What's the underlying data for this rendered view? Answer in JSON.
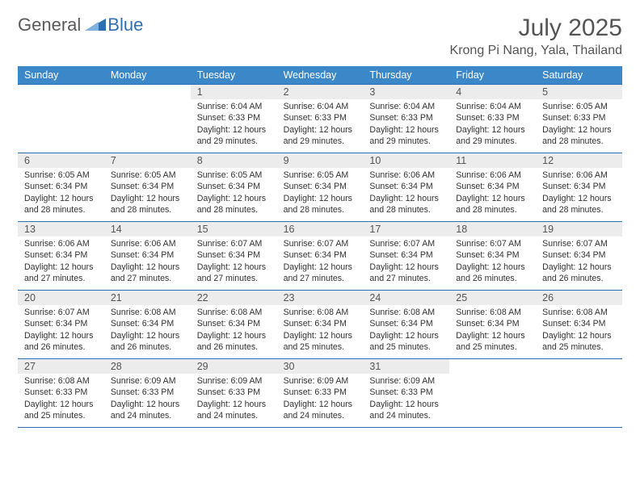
{
  "logo": {
    "text1": "General",
    "text2": "Blue"
  },
  "title": "July 2025",
  "subtitle": "Krong Pi Nang, Yala, Thailand",
  "header_bg": "#3b87c8",
  "rule_color": "#2d6fb5",
  "daynum_bg": "#ececec",
  "day_headers": [
    "Sunday",
    "Monday",
    "Tuesday",
    "Wednesday",
    "Thursday",
    "Friday",
    "Saturday"
  ],
  "weeks": [
    [
      {
        "n": "",
        "t": ""
      },
      {
        "n": "",
        "t": ""
      },
      {
        "n": "1",
        "t": "Sunrise: 6:04 AM\nSunset: 6:33 PM\nDaylight: 12 hours and 29 minutes."
      },
      {
        "n": "2",
        "t": "Sunrise: 6:04 AM\nSunset: 6:33 PM\nDaylight: 12 hours and 29 minutes."
      },
      {
        "n": "3",
        "t": "Sunrise: 6:04 AM\nSunset: 6:33 PM\nDaylight: 12 hours and 29 minutes."
      },
      {
        "n": "4",
        "t": "Sunrise: 6:04 AM\nSunset: 6:33 PM\nDaylight: 12 hours and 29 minutes."
      },
      {
        "n": "5",
        "t": "Sunrise: 6:05 AM\nSunset: 6:33 PM\nDaylight: 12 hours and 28 minutes."
      }
    ],
    [
      {
        "n": "6",
        "t": "Sunrise: 6:05 AM\nSunset: 6:34 PM\nDaylight: 12 hours and 28 minutes."
      },
      {
        "n": "7",
        "t": "Sunrise: 6:05 AM\nSunset: 6:34 PM\nDaylight: 12 hours and 28 minutes."
      },
      {
        "n": "8",
        "t": "Sunrise: 6:05 AM\nSunset: 6:34 PM\nDaylight: 12 hours and 28 minutes."
      },
      {
        "n": "9",
        "t": "Sunrise: 6:05 AM\nSunset: 6:34 PM\nDaylight: 12 hours and 28 minutes."
      },
      {
        "n": "10",
        "t": "Sunrise: 6:06 AM\nSunset: 6:34 PM\nDaylight: 12 hours and 28 minutes."
      },
      {
        "n": "11",
        "t": "Sunrise: 6:06 AM\nSunset: 6:34 PM\nDaylight: 12 hours and 28 minutes."
      },
      {
        "n": "12",
        "t": "Sunrise: 6:06 AM\nSunset: 6:34 PM\nDaylight: 12 hours and 28 minutes."
      }
    ],
    [
      {
        "n": "13",
        "t": "Sunrise: 6:06 AM\nSunset: 6:34 PM\nDaylight: 12 hours and 27 minutes."
      },
      {
        "n": "14",
        "t": "Sunrise: 6:06 AM\nSunset: 6:34 PM\nDaylight: 12 hours and 27 minutes."
      },
      {
        "n": "15",
        "t": "Sunrise: 6:07 AM\nSunset: 6:34 PM\nDaylight: 12 hours and 27 minutes."
      },
      {
        "n": "16",
        "t": "Sunrise: 6:07 AM\nSunset: 6:34 PM\nDaylight: 12 hours and 27 minutes."
      },
      {
        "n": "17",
        "t": "Sunrise: 6:07 AM\nSunset: 6:34 PM\nDaylight: 12 hours and 27 minutes."
      },
      {
        "n": "18",
        "t": "Sunrise: 6:07 AM\nSunset: 6:34 PM\nDaylight: 12 hours and 26 minutes."
      },
      {
        "n": "19",
        "t": "Sunrise: 6:07 AM\nSunset: 6:34 PM\nDaylight: 12 hours and 26 minutes."
      }
    ],
    [
      {
        "n": "20",
        "t": "Sunrise: 6:07 AM\nSunset: 6:34 PM\nDaylight: 12 hours and 26 minutes."
      },
      {
        "n": "21",
        "t": "Sunrise: 6:08 AM\nSunset: 6:34 PM\nDaylight: 12 hours and 26 minutes."
      },
      {
        "n": "22",
        "t": "Sunrise: 6:08 AM\nSunset: 6:34 PM\nDaylight: 12 hours and 26 minutes."
      },
      {
        "n": "23",
        "t": "Sunrise: 6:08 AM\nSunset: 6:34 PM\nDaylight: 12 hours and 25 minutes."
      },
      {
        "n": "24",
        "t": "Sunrise: 6:08 AM\nSunset: 6:34 PM\nDaylight: 12 hours and 25 minutes."
      },
      {
        "n": "25",
        "t": "Sunrise: 6:08 AM\nSunset: 6:34 PM\nDaylight: 12 hours and 25 minutes."
      },
      {
        "n": "26",
        "t": "Sunrise: 6:08 AM\nSunset: 6:34 PM\nDaylight: 12 hours and 25 minutes."
      }
    ],
    [
      {
        "n": "27",
        "t": "Sunrise: 6:08 AM\nSunset: 6:33 PM\nDaylight: 12 hours and 25 minutes."
      },
      {
        "n": "28",
        "t": "Sunrise: 6:09 AM\nSunset: 6:33 PM\nDaylight: 12 hours and 24 minutes."
      },
      {
        "n": "29",
        "t": "Sunrise: 6:09 AM\nSunset: 6:33 PM\nDaylight: 12 hours and 24 minutes."
      },
      {
        "n": "30",
        "t": "Sunrise: 6:09 AM\nSunset: 6:33 PM\nDaylight: 12 hours and 24 minutes."
      },
      {
        "n": "31",
        "t": "Sunrise: 6:09 AM\nSunset: 6:33 PM\nDaylight: 12 hours and 24 minutes."
      },
      {
        "n": "",
        "t": ""
      },
      {
        "n": "",
        "t": ""
      }
    ]
  ]
}
